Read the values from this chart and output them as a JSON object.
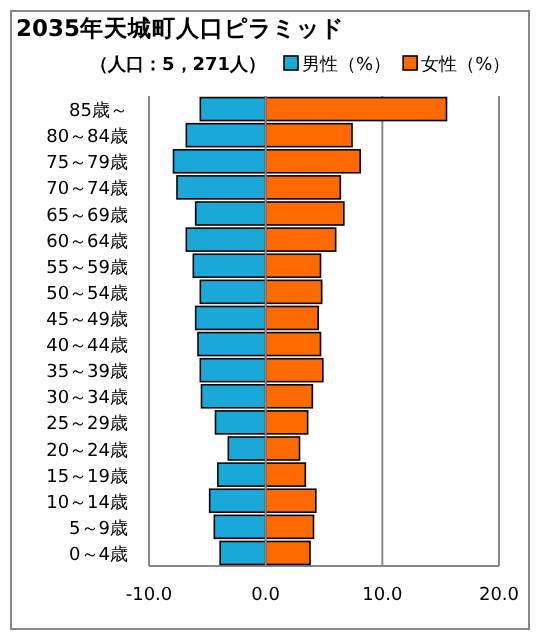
{
  "chart_data": {
    "type": "bar",
    "orientation": "horizontal",
    "title": "2035年天城町人口ピラミッド",
    "subtitle": "（人口：5，271人）",
    "categories": [
      "85歳～",
      "80～84歳",
      "75～79歳",
      "70～74歳",
      "65～69歳",
      "60～64歳",
      "55～59歳",
      "50～54歳",
      "45～49歳",
      "40～44歳",
      "35～39歳",
      "30～34歳",
      "25～29歳",
      "20～24歳",
      "15～19歳",
      "10～14歳",
      "5～9歳",
      "0～4歳"
    ],
    "series": [
      {
        "name": "男性（%）",
        "color": "#1aa8d8",
        "values": [
          -5.6,
          -6.8,
          -7.9,
          -7.6,
          -6.0,
          -6.8,
          -6.2,
          -5.6,
          -6.0,
          -5.8,
          -5.6,
          -5.5,
          -4.3,
          -3.2,
          -4.1,
          -4.8,
          -4.4,
          -3.9
        ]
      },
      {
        "name": "女性（%）",
        "color": "#ff6a00",
        "values": [
          15.5,
          7.4,
          8.1,
          6.4,
          6.7,
          6.0,
          4.7,
          4.8,
          4.5,
          4.7,
          4.9,
          4.0,
          3.6,
          2.9,
          3.4,
          4.3,
          4.1,
          3.8
        ]
      }
    ],
    "xlim": [
      -10,
      20
    ],
    "xticks": [
      {
        "value": -10,
        "label": "-10.0"
      },
      {
        "value": 0,
        "label": "0.0"
      },
      {
        "value": 10,
        "label": "10.0"
      },
      {
        "value": 20,
        "label": "20.0"
      }
    ],
    "grid": "x",
    "legend": "top right",
    "stacked": true
  }
}
